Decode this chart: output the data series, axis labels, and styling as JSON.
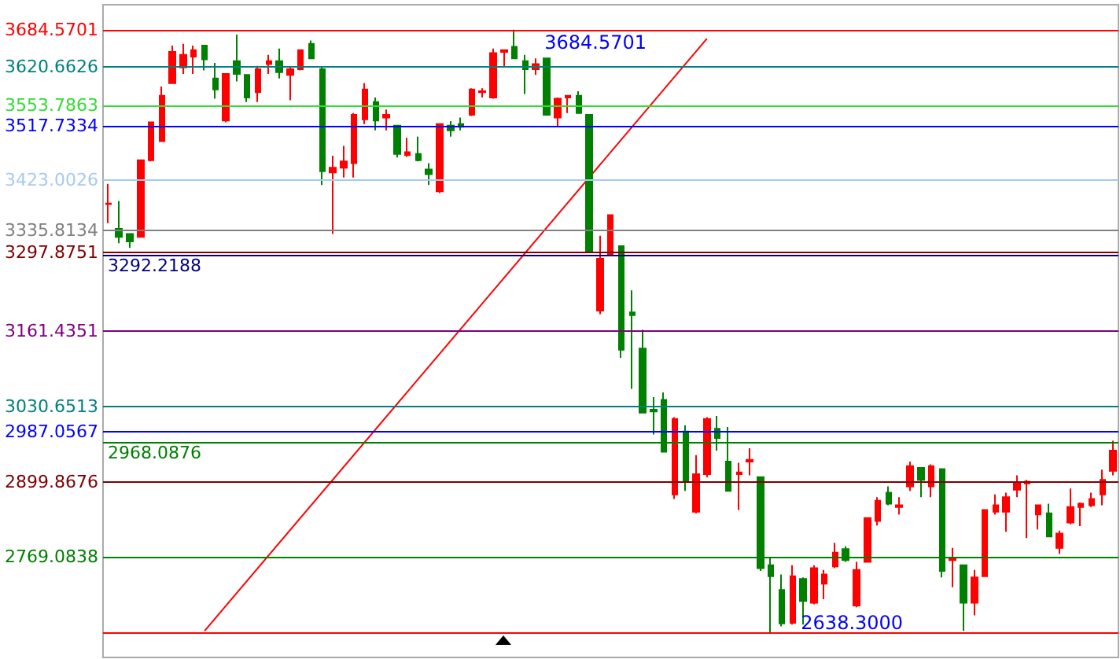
{
  "chart_data": {
    "type": "candlestick",
    "categories": [
      null,
      null,
      null,
      null,
      null,
      null,
      null,
      null,
      null,
      null,
      null,
      null,
      null,
      null,
      null,
      null,
      null,
      null,
      null,
      null,
      null,
      null,
      null,
      null,
      null,
      null,
      null,
      null,
      null,
      null,
      null,
      null,
      null,
      null,
      null,
      null,
      null,
      null,
      null,
      null,
      null,
      null,
      null,
      null,
      null,
      null,
      null,
      null,
      null,
      null,
      null,
      null,
      null,
      null,
      null,
      null,
      null,
      null,
      null,
      null,
      null,
      null,
      null,
      null,
      null,
      null,
      null,
      null,
      null,
      null,
      null,
      null,
      null,
      null,
      null,
      null,
      null,
      null,
      null,
      null,
      null,
      null,
      null,
      null,
      null,
      null,
      null,
      null,
      null,
      null,
      null,
      null,
      null,
      null,
      null
    ],
    "ohlc": [
      [
        3382,
        3417,
        3349,
        3383
      ],
      [
        3339,
        3387,
        3314,
        3325
      ],
      [
        3330,
        3330,
        3306,
        3317
      ],
      [
        3325,
        3458,
        3325,
        3458
      ],
      [
        3458,
        3524,
        3456,
        3524
      ],
      [
        3491,
        3586,
        3491,
        3570
      ],
      [
        3592,
        3657,
        3592,
        3646
      ],
      [
        3619,
        3660,
        3608,
        3641
      ],
      [
        3638,
        3657,
        3608,
        3649
      ],
      [
        3657,
        3657,
        3614,
        3633
      ],
      [
        3600,
        3627,
        3565,
        3581
      ],
      [
        3527,
        3608,
        3524,
        3608
      ],
      [
        3630,
        3676,
        3595,
        3608
      ],
      [
        3606,
        3606,
        3559,
        3567
      ],
      [
        3576,
        3622,
        3559,
        3616
      ],
      [
        3625,
        3641,
        3608,
        3630
      ],
      [
        3630,
        3652,
        3600,
        3611
      ],
      [
        3606,
        3619,
        3562,
        3616
      ],
      [
        3616,
        3649,
        3614,
        3649
      ],
      [
        3660,
        3666,
        3635,
        3635
      ],
      [
        3616,
        3619,
        3415,
        3439
      ],
      [
        3437,
        3466,
        3330,
        3445
      ],
      [
        3445,
        3483,
        3428,
        3456
      ],
      [
        3453,
        3540,
        3428,
        3537
      ],
      [
        3529,
        3592,
        3521,
        3581
      ],
      [
        3559,
        3567,
        3510,
        3527
      ],
      [
        3532,
        3546,
        3510,
        3537
      ],
      [
        3518,
        3518,
        3463,
        3469
      ],
      [
        3467,
        3497,
        3464,
        3472
      ],
      [
        3469,
        3499,
        3456,
        3458
      ],
      [
        3442,
        3453,
        3415,
        3434
      ],
      [
        3404,
        3521,
        3401,
        3521
      ],
      [
        3518,
        3526,
        3499,
        3510
      ],
      [
        3521,
        3532,
        3510,
        3516
      ],
      [
        3537,
        3583,
        3535,
        3581
      ],
      [
        3576,
        3583,
        3567,
        3578
      ],
      [
        3567,
        3652,
        3565,
        3644
      ],
      [
        3646,
        3649,
        3619,
        3649
      ],
      [
        3655,
        3684.5701,
        3635,
        3635
      ],
      [
        3630,
        3641,
        3573,
        3616
      ],
      [
        3616,
        3635,
        3606,
        3625
      ],
      [
        3635,
        3635,
        3537,
        3537
      ],
      [
        3532,
        3567,
        3515,
        3565
      ],
      [
        3567,
        3570,
        3540,
        3570
      ],
      [
        3570,
        3578,
        3540,
        3540
      ],
      [
        3537,
        3537,
        3298,
        3298
      ],
      [
        3197,
        3327,
        3191,
        3287
      ],
      [
        3295,
        3363,
        3295,
        3363
      ],
      [
        3309,
        3309,
        3115,
        3129
      ],
      [
        3194,
        3232,
        3061,
        3189
      ],
      [
        3131,
        3164,
        3020,
        3020
      ],
      [
        3025,
        3047,
        2982,
        3022
      ],
      [
        3042,
        3055,
        2952,
        2952
      ],
      [
        2878,
        3012,
        2870,
        3009
      ],
      [
        2987,
        2998,
        2884,
        2900
      ],
      [
        2848,
        2946,
        2845,
        2913
      ],
      [
        2913,
        3012,
        2908,
        3009
      ],
      [
        2992,
        3014,
        2954,
        2976
      ],
      [
        2935,
        2995,
        2884,
        2884
      ],
      [
        2913,
        2933,
        2851,
        2916
      ],
      [
        2935,
        2958,
        2911,
        2938
      ],
      [
        2908,
        2908,
        2745,
        2750
      ],
      [
        2755,
        2769,
        2638.3,
        2736
      ],
      [
        2712,
        2739,
        2649,
        2654
      ],
      [
        2655,
        2755,
        2652,
        2736
      ],
      [
        2731,
        2734,
        2652,
        2693
      ],
      [
        2690,
        2755,
        2687,
        2750
      ],
      [
        2723,
        2747,
        2696,
        2739
      ],
      [
        2753,
        2794,
        2750,
        2777
      ],
      [
        2783,
        2788,
        2761,
        2764
      ],
      [
        2685,
        2761,
        2682,
        2747
      ],
      [
        2761,
        2837,
        2761,
        2837
      ],
      [
        2832,
        2873,
        2824,
        2867
      ],
      [
        2881,
        2892,
        2859,
        2862
      ],
      [
        2856,
        2873,
        2843,
        2859
      ],
      [
        2892,
        2935,
        2884,
        2927
      ],
      [
        2924,
        2924,
        2873,
        2903
      ],
      [
        2892,
        2930,
        2873,
        2927
      ],
      [
        2922,
        2922,
        2734,
        2745
      ],
      [
        2764,
        2785,
        2717,
        2766
      ],
      [
        2755,
        2755,
        2641,
        2690
      ],
      [
        2690,
        2747,
        2668,
        2734
      ],
      [
        2736,
        2851,
        2736,
        2851
      ],
      [
        2848,
        2878,
        2843,
        2859
      ],
      [
        2848,
        2881,
        2813,
        2873
      ],
      [
        2886,
        2911,
        2873,
        2897
      ],
      [
        2897,
        2903,
        2802,
        2900
      ],
      [
        2843,
        2859,
        2817,
        2859
      ],
      [
        2845,
        2862,
        2805,
        2805
      ],
      [
        2785,
        2815,
        2775,
        2810
      ],
      [
        2829,
        2888,
        2826,
        2856
      ],
      [
        2856,
        2864,
        2823,
        2862
      ],
      [
        2859,
        2881,
        2856,
        2870
      ],
      [
        2878,
        2921,
        2859,
        2903
      ],
      [
        2919,
        2971,
        2911,
        2954
      ]
    ],
    "colors": [
      "#ff0000",
      "#008000",
      "#008000",
      "#ff0000",
      "#ff0000",
      "#ff0000",
      "#ff0000",
      "#ff0000",
      "#ff0000",
      "#008000",
      "#008000",
      "#ff0000",
      "#008000",
      "#008000",
      "#ff0000",
      "#ff0000",
      "#008000",
      "#ff0000",
      "#ff0000",
      "#008000",
      "#008000",
      "#ff0000",
      "#ff0000",
      "#ff0000",
      "#ff0000",
      "#008000",
      "#ff0000",
      "#008000",
      "#ff0000",
      "#008000",
      "#008000",
      "#ff0000",
      "#008000",
      "#008000",
      "#ff0000",
      "#ff0000",
      "#ff0000",
      "#ff0000",
      "#008000",
      "#008000",
      "#ff0000",
      "#008000",
      "#ff0000",
      "#ff0000",
      "#008000",
      "#008000",
      "#ff0000",
      "#ff0000",
      "#008000",
      "#008000",
      "#008000",
      "#008000",
      "#008000",
      "#ff0000",
      "#008000",
      "#ff0000",
      "#ff0000",
      "#008000",
      "#008000",
      "#ff0000",
      "#ff0000",
      "#008000",
      "#008000",
      "#008000",
      "#ff0000",
      "#008000",
      "#ff0000",
      "#ff0000",
      "#ff0000",
      "#008000",
      "#ff0000",
      "#ff0000",
      "#ff0000",
      "#008000",
      "#ff0000",
      "#ff0000",
      "#008000",
      "#ff0000",
      "#008000",
      "#ff0000",
      "#008000",
      "#ff0000",
      "#ff0000",
      "#ff0000",
      "#ff0000",
      "#ff0000",
      "#ff0000",
      "#ff0000",
      "#008000",
      "#ff0000",
      "#ff0000",
      "#ff0000",
      "#ff0000",
      "#ff0000",
      "#ff0000"
    ],
    "series": [
      {
        "type": "line",
        "color": "#ff0000",
        "values": [
          null,
          null,
          null,
          null,
          null,
          null,
          null,
          null,
          null,
          2641,
          null,
          null,
          null,
          null,
          null,
          null,
          null,
          null,
          null,
          null,
          null,
          null,
          null,
          null,
          null,
          null,
          null,
          null,
          null,
          null,
          null,
          null,
          null,
          null,
          null,
          null,
          null,
          null,
          null,
          null,
          null,
          null,
          null,
          null,
          null,
          null,
          null,
          null,
          null,
          null,
          null,
          null,
          null,
          null,
          null,
          null,
          3669,
          null,
          null,
          null,
          null,
          null,
          null,
          null,
          null,
          null,
          null,
          null,
          null,
          null,
          null,
          null,
          null,
          null,
          null,
          null,
          null,
          null,
          null,
          null,
          null,
          null,
          null,
          null,
          null,
          null,
          null,
          null,
          null,
          null,
          null,
          null,
          null,
          null,
          null
        ]
      }
    ],
    "ylim": [
      2595,
      3728
    ],
    "tick_labels": "y",
    "yticks": [
      3684.5701,
      3620.6626,
      3553.7863,
      3517.7334,
      3423.0026,
      3335.8134,
      3297.8751,
      3161.4351,
      3030.6513,
      2987.0567,
      2899.8676,
      2769.0838
    ],
    "ref_lines": [
      {
        "axis": "y",
        "value": 3684.5701,
        "color": "#ff0000"
      },
      {
        "axis": "y",
        "value": 3620.6626,
        "color": "#008080"
      },
      {
        "axis": "y",
        "value": 3553.7863,
        "color": "#33dd33"
      },
      {
        "axis": "y",
        "value": 3517.7334,
        "color": "#0000ff"
      },
      {
        "axis": "y",
        "value": 3423.0026,
        "color": "#a6caf0"
      },
      {
        "axis": "y",
        "value": 3335.8134,
        "color": "#808080"
      },
      {
        "axis": "y",
        "value": 3297.8751,
        "color": "#800000"
      },
      {
        "axis": "y",
        "value": 3292.2188,
        "label": "3292.2188",
        "color": "#000080"
      },
      {
        "axis": "y",
        "value": 3161.4351,
        "color": "#800080"
      },
      {
        "axis": "y",
        "value": 3030.6513,
        "color": "#008080"
      },
      {
        "axis": "y",
        "value": 2987.0567,
        "color": "#0000ff"
      },
      {
        "axis": "y",
        "value": 2968.0876,
        "label": "2968.0876",
        "color": "#008000"
      },
      {
        "axis": "y",
        "value": 2899.8676,
        "color": "#800000"
      },
      {
        "axis": "y",
        "value": 2769.0838,
        "color": "#008000"
      },
      {
        "axis": "y",
        "value": 2638.3,
        "color": "#ff0000"
      }
    ],
    "annotations": [
      {
        "text": "3684.5701",
        "y": 3684.5701
      },
      {
        "text": "2638.3000",
        "y": 2638.3
      }
    ]
  }
}
